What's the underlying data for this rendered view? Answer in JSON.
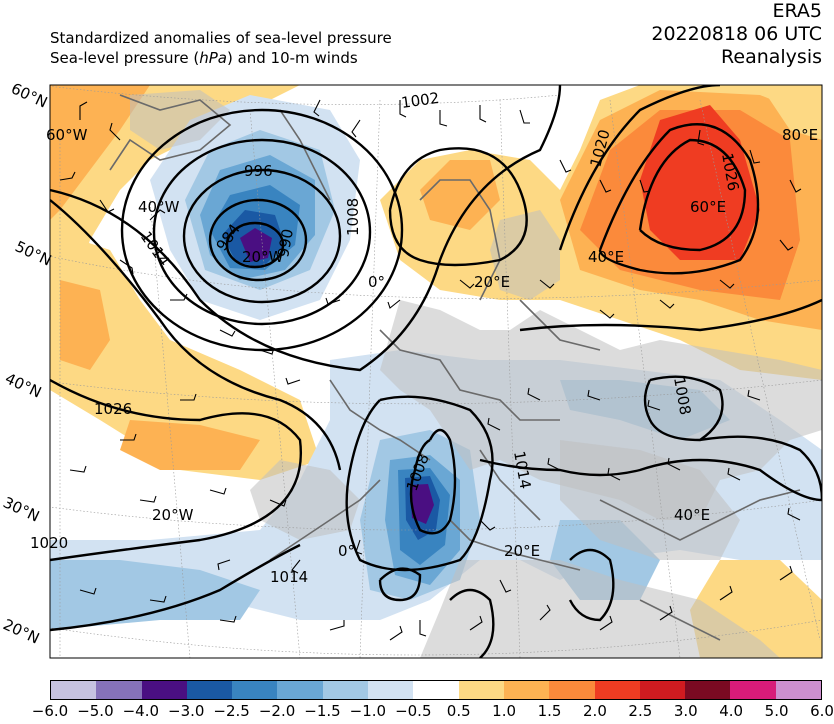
{
  "header": {
    "title_line1": "Standardized anomalies of sea-level pressure",
    "title_line2_a": "Sea-level pressure (",
    "title_line2_unit": "hPa",
    "title_line2_b": ") and 10-m winds",
    "source": "ERA5",
    "datetime": "20220818 06 UTC",
    "product": "Reanalysis"
  },
  "map": {
    "lat_labels": [
      "60°N",
      "50°N",
      "40°N",
      "30°N",
      "20°N"
    ],
    "lon_labels": [
      "60°W",
      "40°W",
      "20°W",
      "0°",
      "20°E",
      "40°E",
      "60°E",
      "80°E",
      "20°W",
      "0°",
      "20°E",
      "40°E"
    ],
    "isobar_labels": [
      "1002",
      "996",
      "984",
      "990",
      "1008",
      "1014",
      "1020",
      "1026",
      "1026",
      "1020",
      "1008",
      "1008",
      "1014",
      "1014",
      "1020"
    ]
  },
  "colorbar": {
    "colors": [
      "#c6c2e0",
      "#8672b9",
      "#4a0f82",
      "#1a59a4",
      "#3984c0",
      "#6aa7d4",
      "#a2c8e4",
      "#d2e2f2",
      "#ffffff",
      "#fdd984",
      "#fdb253",
      "#fb8a3b",
      "#ef3c22",
      "#cf1b20",
      "#7a0a22",
      "#d81b79",
      "#cd8fcf"
    ],
    "ticks": [
      "−6.0",
      "−5.0",
      "−4.0",
      "−3.0",
      "−2.5",
      "−2.0",
      "−1.5",
      "−1.0",
      "−0.5",
      "0.5",
      "1.0",
      "1.5",
      "2.0",
      "2.5",
      "3.0",
      "4.0",
      "5.0",
      "6.0"
    ]
  }
}
